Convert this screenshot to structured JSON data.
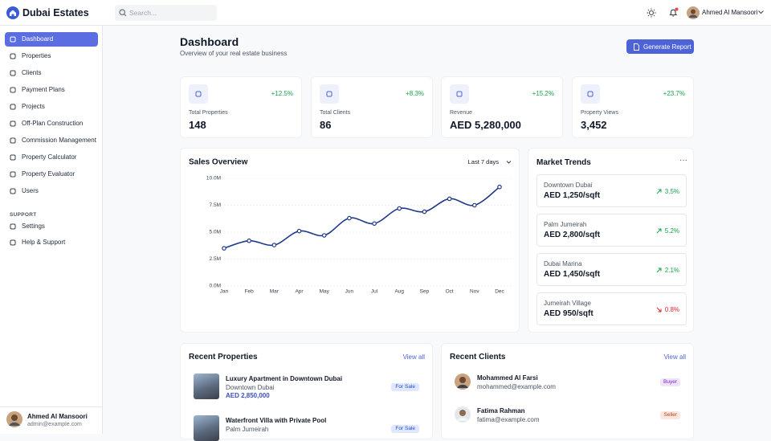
{
  "header": {
    "brand": "Dubai Estates",
    "search_placeholder": "Search...",
    "user_name": "Ahmed Al Mansoori"
  },
  "sidebar": {
    "active": 0,
    "nav": [
      "Dashboard",
      "Properties",
      "Clients",
      "Payment Plans",
      "Projects",
      "Off-Plan Construction",
      "Commission Management",
      "Property Calculator",
      "Property Evaluator",
      "Users"
    ],
    "support_heading": "SUPPORT",
    "support": [
      "Settings",
      "Help & Support"
    ],
    "user": {
      "name": "Ahmed Al Mansoori",
      "email": "admin@example.com"
    }
  },
  "page": {
    "title": "Dashboard",
    "subtitle": "Overview of your real estate business",
    "button": "Generate Report"
  },
  "stats": [
    {
      "label": "Total Properties",
      "value": "148",
      "change": "+12.5%"
    },
    {
      "label": "Total Clients",
      "value": "86",
      "change": "+8.3%"
    },
    {
      "label": "Revenue",
      "value": "AED 5,280,000",
      "change": "+15.2%"
    },
    {
      "label": "Property Views",
      "value": "3,452",
      "change": "+23.7%"
    }
  ],
  "sales_overview": {
    "type": "line",
    "title": "Sales Overview",
    "period": "Last 7 days",
    "categories": [
      "Jan",
      "Feb",
      "Mar",
      "Apr",
      "May",
      "Jun",
      "Jul",
      "Aug",
      "Sep",
      "Oct",
      "Nov",
      "Dec"
    ],
    "values": [
      3500000,
      4200000,
      3800000,
      5100000,
      4700000,
      6300000,
      5800000,
      7200000,
      6900000,
      8100000,
      7500000,
      9200000
    ],
    "ylim": [
      0,
      10000000
    ],
    "yticks": [
      {
        "value": 0,
        "label": "0.0M"
      },
      {
        "value": 2500000,
        "label": "2.5M"
      },
      {
        "value": 5000000,
        "label": "5.0M"
      },
      {
        "value": 7500000,
        "label": "7.5M"
      },
      {
        "value": 10000000,
        "label": "10.0M"
      }
    ],
    "grid": true,
    "color": "#1e3a8a"
  },
  "market_trends": {
    "title": "Market Trends",
    "items": [
      {
        "area": "Downtown Dubai",
        "price": "AED 1,250/sqft",
        "change": "3.5%",
        "trend": "up"
      },
      {
        "area": "Palm Jumeirah",
        "price": "AED 2,800/sqft",
        "change": "5.2%",
        "trend": "up"
      },
      {
        "area": "Dubai Marina",
        "price": "AED 1,450/sqft",
        "change": "2.1%",
        "trend": "up"
      },
      {
        "area": "Jumeirah Village",
        "price": "AED 950/sqft",
        "change": "0.8%",
        "trend": "down"
      }
    ]
  },
  "recent_properties": {
    "title": "Recent Properties",
    "view_all": "View all",
    "items": [
      {
        "name": "Luxury Apartment in Downtown Dubai",
        "location": "Downtown Dubai",
        "price": "AED 2,850,000",
        "status": "For Sale"
      },
      {
        "name": "Waterfront Villa with Private Pool",
        "location": "Palm Jumeirah",
        "status": "For Sale"
      }
    ]
  },
  "recent_clients": {
    "title": "Recent Clients",
    "view_all": "View all",
    "items": [
      {
        "name": "Mohammed Al Farsi",
        "email": "mohammed@example.com",
        "type": "Buyer",
        "color": "#7e22ce"
      },
      {
        "name": "Fatima Rahman",
        "email": "fatima@example.com",
        "type": "Seller",
        "color": "#c2410c"
      }
    ]
  }
}
